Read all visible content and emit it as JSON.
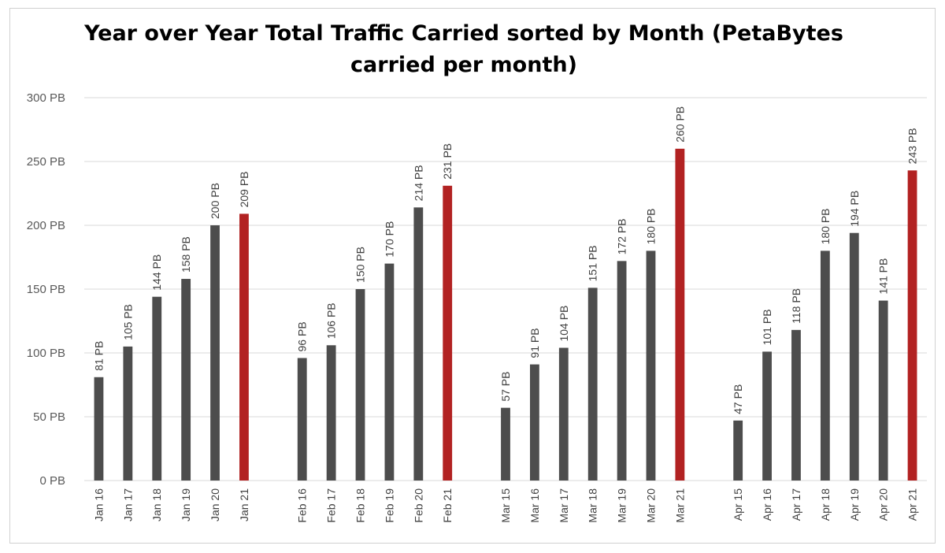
{
  "chart_data": {
    "type": "bar",
    "title": "Year over Year Total Traffic Carried sorted by Month (PetaBytes carried per month)",
    "title_lines": [
      "Year over Year Total Traffic Carried sorted by Month (PetaBytes",
      "carried per month)"
    ],
    "xlabel": "",
    "ylabel": "",
    "ylim": [
      0,
      300
    ],
    "yticks": [
      "0 PB",
      "50 PB",
      "100 PB",
      "150 PB",
      "200 PB",
      "250 PB",
      "300 PB"
    ],
    "grid": true,
    "legend": "none",
    "colors": {
      "default": "#4d4d4d",
      "highlight": "#b22222",
      "grid": "#d9d9d9"
    },
    "groups": [
      {
        "bars": [
          {
            "category": "Jan 16",
            "value": 81,
            "label": "81 PB",
            "highlight": false
          },
          {
            "category": "Jan 17",
            "value": 105,
            "label": "105 PB",
            "highlight": false
          },
          {
            "category": "Jan 18",
            "value": 144,
            "label": "144 PB",
            "highlight": false
          },
          {
            "category": "Jan 19",
            "value": 158,
            "label": "158 PB",
            "highlight": false
          },
          {
            "category": "Jan 20",
            "value": 200,
            "label": "200 PB",
            "highlight": false
          },
          {
            "category": "Jan 21",
            "value": 209,
            "label": "209 PB",
            "highlight": true
          }
        ]
      },
      {
        "bars": [
          {
            "category": "Feb 16",
            "value": 96,
            "label": "96 PB",
            "highlight": false
          },
          {
            "category": "Feb 17",
            "value": 106,
            "label": "106 PB",
            "highlight": false
          },
          {
            "category": "Feb 18",
            "value": 150,
            "label": "150 PB",
            "highlight": false
          },
          {
            "category": "Feb 19",
            "value": 170,
            "label": "170 PB",
            "highlight": false
          },
          {
            "category": "Feb 20",
            "value": 214,
            "label": "214 PB",
            "highlight": false
          },
          {
            "category": "Feb 21",
            "value": 231,
            "label": "231 PB",
            "highlight": true
          }
        ]
      },
      {
        "bars": [
          {
            "category": "Mar 15",
            "value": 57,
            "label": "57 PB",
            "highlight": false
          },
          {
            "category": "Mar 16",
            "value": 91,
            "label": "91 PB",
            "highlight": false
          },
          {
            "category": "Mar 17",
            "value": 104,
            "label": "104 PB",
            "highlight": false
          },
          {
            "category": "Mar 18",
            "value": 151,
            "label": "151 PB",
            "highlight": false
          },
          {
            "category": "Mar 19",
            "value": 172,
            "label": "172 PB",
            "highlight": false
          },
          {
            "category": "Mar 20",
            "value": 180,
            "label": "180 PB",
            "highlight": false
          },
          {
            "category": "Mar 21",
            "value": 260,
            "label": "260 PB",
            "highlight": true
          }
        ]
      },
      {
        "bars": [
          {
            "category": "Apr 15",
            "value": 47,
            "label": "47 PB",
            "highlight": false
          },
          {
            "category": "Apr 16",
            "value": 101,
            "label": "101 PB",
            "highlight": false
          },
          {
            "category": "Apr 17",
            "value": 118,
            "label": "118 PB",
            "highlight": false
          },
          {
            "category": "Apr 18",
            "value": 180,
            "label": "180 PB",
            "highlight": false
          },
          {
            "category": "Apr 19",
            "value": 194,
            "label": "194 PB",
            "highlight": false
          },
          {
            "category": "Apr 20",
            "value": 141,
            "label": "141 PB",
            "highlight": false
          },
          {
            "category": "Apr 21",
            "value": 243,
            "label": "243 PB",
            "highlight": true
          }
        ]
      }
    ]
  }
}
